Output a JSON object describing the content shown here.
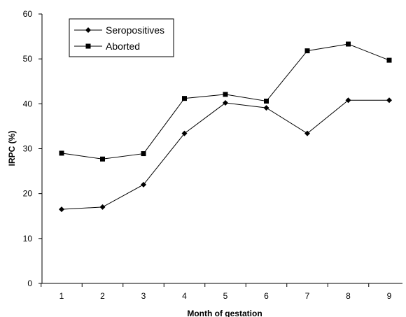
{
  "chart_data": {
    "type": "line",
    "title": "",
    "xlabel": "Month of gestation",
    "ylabel": "IRPC (%)",
    "x": [
      1,
      2,
      3,
      4,
      5,
      6,
      7,
      8,
      9
    ],
    "ylim": [
      0,
      60
    ],
    "yticks": [
      0,
      10,
      20,
      30,
      40,
      50,
      60
    ],
    "grid": false,
    "legend_position": "top-left",
    "series": [
      {
        "name": "Seropositives",
        "marker": "diamond",
        "color": "#000000",
        "values": [
          16.5,
          17.0,
          22.0,
          33.4,
          40.2,
          39.1,
          33.4,
          40.8,
          40.8
        ]
      },
      {
        "name": "Aborted",
        "marker": "square",
        "color": "#000000",
        "values": [
          29.0,
          27.7,
          28.9,
          41.2,
          42.1,
          40.6,
          51.8,
          53.3,
          49.7
        ]
      }
    ]
  }
}
